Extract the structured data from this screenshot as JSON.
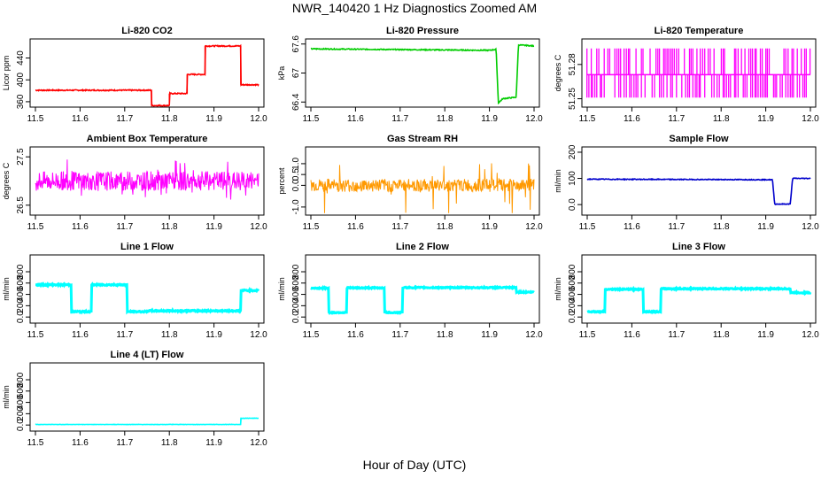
{
  "title": "NWR_140420  1 Hz Diagnostics Zoomed AM",
  "x_axis_title": "Hour of Day (UTC)",
  "chart_data": [
    {
      "id": "co2",
      "type": "line",
      "title": "Li-820 CO2",
      "ylabel": "Licor ppm",
      "color": "#ff0000",
      "xlim": [
        11.5,
        12.0
      ],
      "ylim": [
        355,
        470
      ],
      "xticks": [
        11.5,
        11.6,
        11.7,
        11.8,
        11.9,
        12.0
      ],
      "yticks": [
        360,
        400,
        440
      ],
      "noise": 1,
      "steps": [
        [
          11.5,
          381
        ],
        [
          11.76,
          381
        ],
        [
          11.76,
          353
        ],
        [
          11.8,
          353
        ],
        [
          11.8,
          375
        ],
        [
          11.84,
          375
        ],
        [
          11.84,
          410
        ],
        [
          11.88,
          410
        ],
        [
          11.88,
          462
        ],
        [
          11.96,
          462
        ],
        [
          11.96,
          391
        ],
        [
          12.0,
          391
        ]
      ]
    },
    {
      "id": "pressure",
      "type": "line",
      "title": "Li-820 Pressure",
      "ylabel": "kPa",
      "color": "#00cc00",
      "xlim": [
        11.5,
        12.0
      ],
      "ylim": [
        66.35,
        67.65
      ],
      "xticks": [
        11.5,
        11.6,
        11.7,
        11.8,
        11.9,
        12.0
      ],
      "yticks": [
        66.4,
        67.0,
        67.6
      ],
      "noise": 0.01,
      "steps": [
        [
          11.5,
          67.5
        ],
        [
          11.9,
          67.47
        ],
        [
          11.915,
          67.49
        ],
        [
          11.92,
          66.38
        ],
        [
          11.93,
          66.47
        ],
        [
          11.96,
          66.5
        ],
        [
          11.965,
          67.58
        ],
        [
          12.0,
          67.56
        ]
      ]
    },
    {
      "id": "temperature",
      "type": "pattern",
      "title": "Li-820 Temperature",
      "ylabel": "degrees C",
      "color": "#ff00ff",
      "xlim": [
        11.5,
        12.0
      ],
      "ylim": [
        51.245,
        51.3
      ],
      "xticks": [
        11.5,
        11.6,
        11.7,
        11.8,
        11.9,
        12.0
      ],
      "yticks": [
        51.25,
        51.28
      ],
      "levels": [
        51.251,
        51.271,
        51.294
      ]
    },
    {
      "id": "ambient",
      "type": "noise",
      "title": "Ambient Box Temperature",
      "ylabel": "degrees C",
      "color": "#ff00ff",
      "xlim": [
        11.5,
        12.0
      ],
      "ylim": [
        26.35,
        27.65
      ],
      "xticks": [
        11.5,
        11.6,
        11.7,
        11.8,
        11.9,
        12.0
      ],
      "yticks": [
        26.5,
        27.5
      ],
      "mean": 27.0,
      "amp": 0.2,
      "spike": 0.45
    },
    {
      "id": "rh",
      "type": "noise",
      "title": "Gas Stream RH",
      "ylabel": "percent",
      "color": "#ff9900",
      "xlim": [
        11.5,
        12.0
      ],
      "ylim": [
        -1.25,
        1.65
      ],
      "xticks": [
        11.5,
        11.6,
        11.7,
        11.8,
        11.9,
        12.0
      ],
      "yticks": [
        -1.0,
        0.0,
        0.5,
        1.0
      ],
      "mean": 0.0,
      "amp": 0.3,
      "spike": 1.3
    },
    {
      "id": "sample_flow",
      "type": "line",
      "title": "Sample Flow",
      "ylabel": "ml/min",
      "color": "#0000cc",
      "xlim": [
        11.5,
        12.0
      ],
      "ylim": [
        -30,
        210
      ],
      "xticks": [
        11.5,
        11.6,
        11.7,
        11.8,
        11.9,
        12.0
      ],
      "yticks": [
        0,
        100,
        200
      ],
      "noise": 1.5,
      "steps": [
        [
          11.5,
          97
        ],
        [
          11.915,
          95
        ],
        [
          11.92,
          2
        ],
        [
          11.955,
          2
        ],
        [
          11.96,
          100
        ],
        [
          12.0,
          100
        ]
      ]
    },
    {
      "id": "line1",
      "type": "line",
      "title": "Line 1 Flow",
      "ylabel": "ml/min",
      "color": "#00ffff",
      "xlim": [
        11.5,
        12.0
      ],
      "ylim": [
        -60,
        1050
      ],
      "xticks": [
        11.5,
        11.6,
        11.7,
        11.8,
        11.9,
        12.0
      ],
      "yticks": [
        0,
        200,
        400,
        600,
        800
      ],
      "noise": 12,
      "steps": [
        [
          11.5,
          570
        ],
        [
          11.58,
          570
        ],
        [
          11.58,
          95
        ],
        [
          11.625,
          95
        ],
        [
          11.625,
          570
        ],
        [
          11.705,
          570
        ],
        [
          11.705,
          95
        ],
        [
          11.75,
          95
        ],
        [
          11.75,
          110
        ],
        [
          11.96,
          110
        ],
        [
          11.96,
          470
        ],
        [
          12.0,
          470
        ]
      ]
    },
    {
      "id": "line2",
      "type": "line",
      "title": "Line 2 Flow",
      "ylabel": "ml/min",
      "color": "#00ffff",
      "xlim": [
        11.5,
        12.0
      ],
      "ylim": [
        -60,
        1050
      ],
      "xticks": [
        11.5,
        11.6,
        11.7,
        11.8,
        11.9,
        12.0
      ],
      "yticks": [
        0,
        200,
        400,
        600,
        800
      ],
      "noise": 10,
      "steps": [
        [
          11.5,
          510
        ],
        [
          11.54,
          510
        ],
        [
          11.54,
          80
        ],
        [
          11.58,
          80
        ],
        [
          11.58,
          515
        ],
        [
          11.665,
          515
        ],
        [
          11.665,
          80
        ],
        [
          11.705,
          80
        ],
        [
          11.705,
          520
        ],
        [
          11.96,
          520
        ],
        [
          11.96,
          440
        ],
        [
          12.0,
          440
        ]
      ]
    },
    {
      "id": "line3",
      "type": "line",
      "title": "Line 3 Flow",
      "ylabel": "ml/min",
      "color": "#00ffff",
      "xlim": [
        11.5,
        12.0
      ],
      "ylim": [
        -60,
        1050
      ],
      "xticks": [
        11.5,
        11.6,
        11.7,
        11.8,
        11.9,
        12.0
      ],
      "yticks": [
        0,
        200,
        400,
        600,
        800
      ],
      "noise": 10,
      "steps": [
        [
          11.5,
          95
        ],
        [
          11.54,
          95
        ],
        [
          11.54,
          490
        ],
        [
          11.625,
          490
        ],
        [
          11.625,
          95
        ],
        [
          11.665,
          95
        ],
        [
          11.665,
          500
        ],
        [
          11.955,
          500
        ],
        [
          11.955,
          430
        ],
        [
          12.0,
          430
        ]
      ]
    },
    {
      "id": "line4",
      "type": "line",
      "title": "Line 4 (LT) Flow",
      "ylabel": "ml/min",
      "color": "#00ffff",
      "xlim": [
        11.5,
        12.0
      ],
      "ylim": [
        -60,
        1050
      ],
      "xticks": [
        11.5,
        11.6,
        11.7,
        11.8,
        11.9,
        12.0
      ],
      "yticks": [
        0,
        200,
        400,
        600,
        800
      ],
      "noise": 3,
      "steps": [
        [
          11.5,
          10
        ],
        [
          11.96,
          10
        ],
        [
          11.96,
          120
        ],
        [
          12.0,
          120
        ]
      ]
    }
  ]
}
